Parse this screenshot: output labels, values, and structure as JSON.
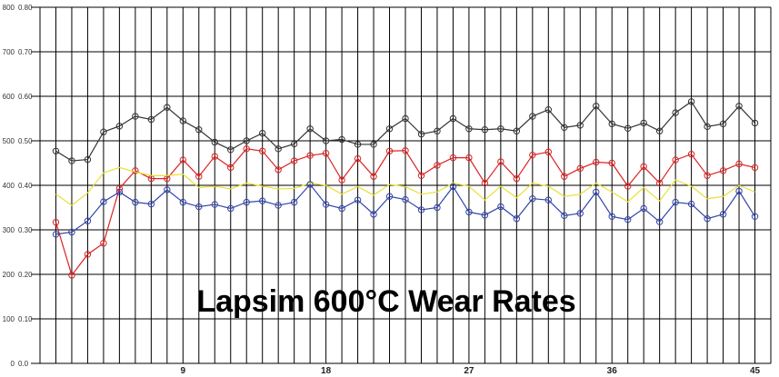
{
  "chart_data": {
    "type": "line",
    "title": "Lapsim 600°C Wear Rates",
    "xlabel": "",
    "ylabel": "",
    "x": [
      1,
      2,
      3,
      4,
      5,
      6,
      7,
      8,
      9,
      10,
      11,
      12,
      13,
      14,
      15,
      16,
      17,
      18,
      19,
      20,
      21,
      22,
      23,
      24,
      25,
      26,
      27,
      28,
      29,
      30,
      31,
      32,
      33,
      34,
      35,
      36,
      37,
      38,
      39,
      40,
      41,
      42,
      43,
      44,
      45
    ],
    "xlim": [
      0,
      46
    ],
    "x_tick_values": [
      9,
      18,
      27,
      36,
      45
    ],
    "x_tick_labels": [
      "9",
      "18",
      "27",
      "36",
      "45"
    ],
    "ylim": [
      0,
      800
    ],
    "y_ticks_left": [
      "0",
      "100",
      "200",
      "300",
      "400",
      "500",
      "600",
      "700",
      "800"
    ],
    "y_ticks_right": [
      "0.0",
      "0.10",
      "0.20",
      "0.30",
      "0.40",
      "0.50",
      "0.60",
      "0.70",
      "0.80"
    ],
    "grid": true,
    "series": [
      {
        "name": "black",
        "color": "#333333",
        "marker": "circle",
        "values": [
          477,
          455,
          458,
          520,
          533,
          555,
          548,
          575,
          545,
          525,
          497,
          480,
          500,
          517,
          482,
          493,
          527,
          500,
          503,
          492,
          492,
          527,
          550,
          515,
          522,
          550,
          527,
          525,
          527,
          522,
          555,
          570,
          530,
          535,
          578,
          538,
          528,
          540,
          522,
          563,
          588,
          532,
          538,
          578,
          540
        ]
      },
      {
        "name": "red",
        "color": "#dd2222",
        "marker": "circle",
        "values": [
          317,
          198,
          245,
          270,
          393,
          433,
          415,
          415,
          457,
          420,
          465,
          440,
          482,
          477,
          435,
          455,
          467,
          472,
          412,
          460,
          420,
          477,
          478,
          422,
          445,
          462,
          462,
          405,
          453,
          415,
          468,
          475,
          420,
          438,
          452,
          450,
          398,
          442,
          405,
          457,
          470,
          422,
          433,
          448,
          440
        ]
      },
      {
        "name": "yellow",
        "color": "#e8e033",
        "marker": "none",
        "values": [
          380,
          355,
          383,
          428,
          440,
          430,
          422,
          422,
          425,
          395,
          398,
          392,
          405,
          398,
          392,
          393,
          405,
          400,
          380,
          397,
          378,
          402,
          397,
          380,
          385,
          405,
          398,
          367,
          398,
          372,
          405,
          398,
          375,
          380,
          405,
          385,
          363,
          395,
          365,
          412,
          398,
          370,
          375,
          400,
          385
        ]
      },
      {
        "name": "blue",
        "color": "#3344aa",
        "marker": "circle",
        "values": [
          290,
          295,
          320,
          363,
          385,
          362,
          358,
          390,
          362,
          352,
          357,
          348,
          362,
          365,
          355,
          362,
          402,
          357,
          348,
          367,
          335,
          375,
          368,
          345,
          350,
          397,
          340,
          333,
          352,
          325,
          370,
          367,
          332,
          337,
          385,
          330,
          323,
          348,
          318,
          362,
          358,
          325,
          335,
          387,
          330
        ]
      }
    ]
  }
}
